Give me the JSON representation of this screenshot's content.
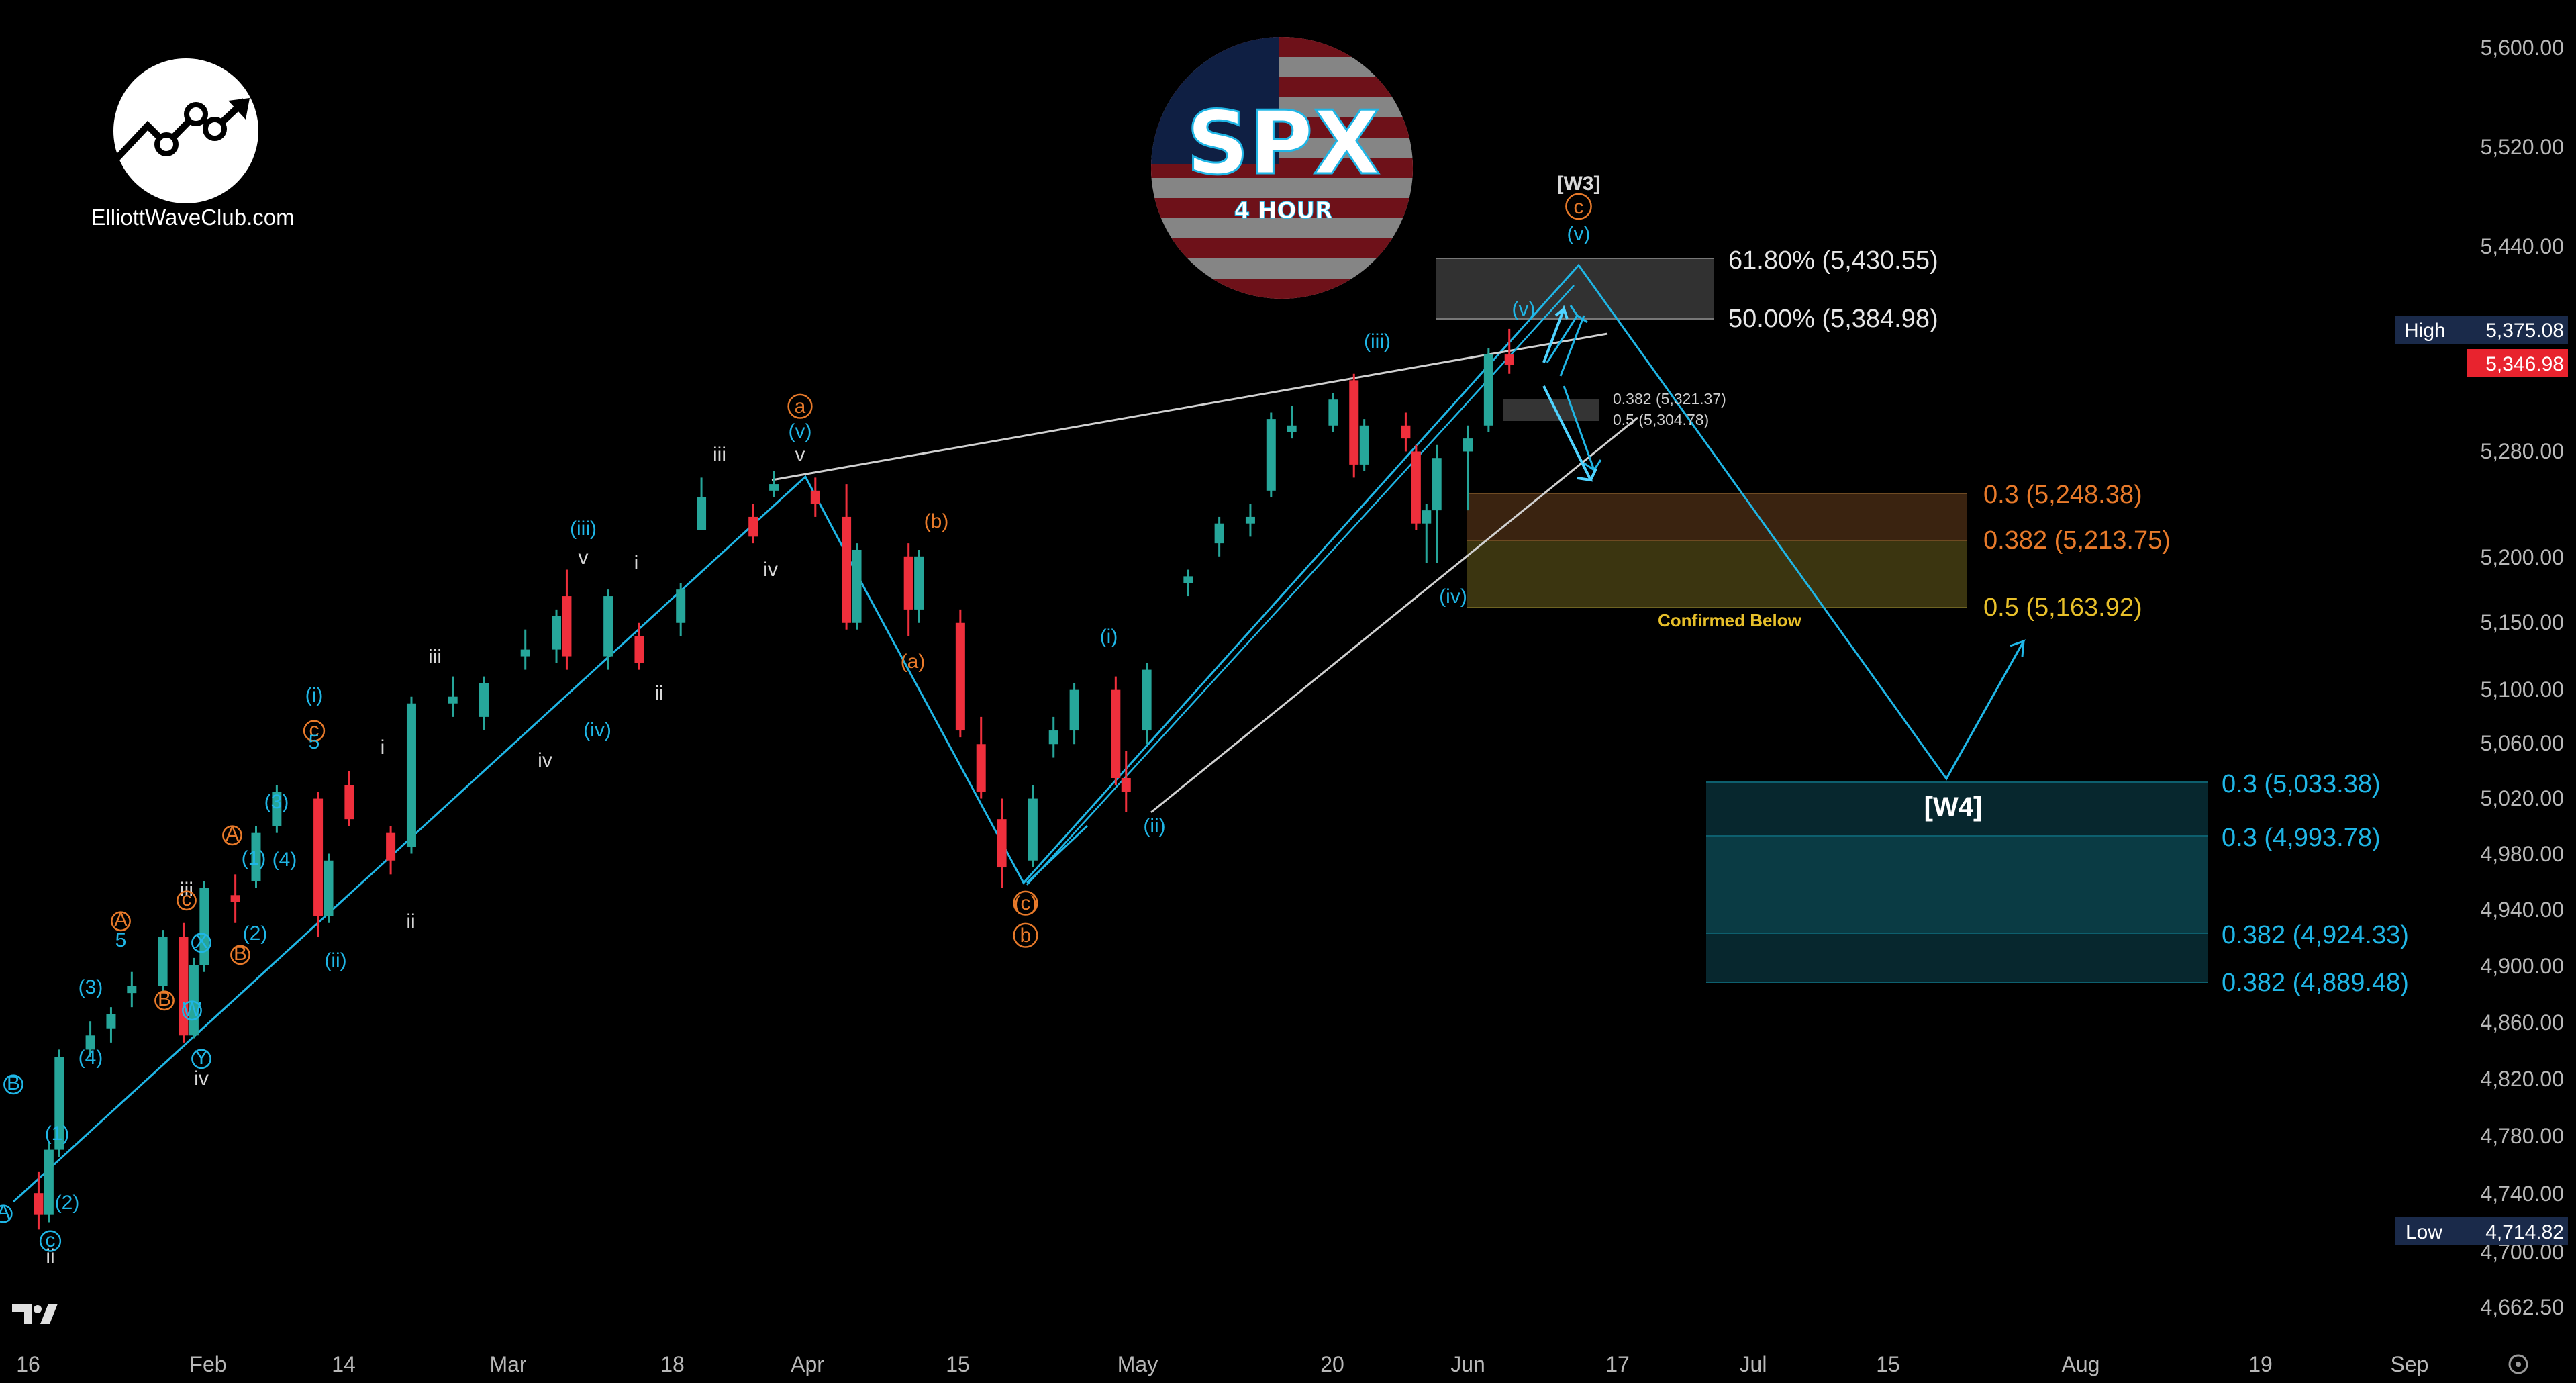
{
  "brand": {
    "name": "ElliottWaveClub.com"
  },
  "badge": {
    "ticker": "SPX",
    "timeframe": "4 HOUR"
  },
  "tv_logo": "tradingview-logo",
  "colors": {
    "bg": "#000000",
    "up": "#26a69a",
    "down": "#ef2f3c",
    "cyan": "#1fb6e6",
    "orange": "#e87a2a",
    "white": "#d8d8d8",
    "grey_box": "#3a3a3a",
    "orange_box": "#3a2310",
    "yellow_box": "#3b3510",
    "teal_box": "#0a3b44",
    "teal_box_dark": "#07272e",
    "teal_mid": "#0d5f6e"
  },
  "axis": {
    "y_ticks": [
      "5,600.00",
      "5,520.00",
      "5,440.00",
      "5,280.00",
      "5,200.00",
      "5,150.00",
      "5,100.00",
      "5,060.00",
      "5,020.00",
      "4,980.00",
      "4,940.00",
      "4,900.00",
      "4,860.00",
      "4,820.00",
      "4,780.00",
      "4,740.00",
      "4,700.00",
      "4,662.50"
    ],
    "x_ticks": [
      "16",
      "Feb",
      "14",
      "Mar",
      "18",
      "Apr",
      "15",
      "May",
      "20",
      "Jun",
      "17",
      "Jul",
      "15",
      "Aug",
      "19",
      "Sep"
    ],
    "high": {
      "label": "High",
      "value": "5,375.08"
    },
    "last": {
      "value": "5,346.98"
    },
    "low": {
      "label": "Low",
      "value": "4,714.82"
    }
  },
  "levels": {
    "fib_618": "61.80% (5,430.55)",
    "fib_50": "50.00% (5,384.98)",
    "small_382": "0.382 (5,321.37)",
    "small_05": "0.5 (5,304.78)",
    "o_03": "0.3 (5,248.38)",
    "o_0382": "0.382 (5,213.75)",
    "y_05": "0.5 (5,163.92)",
    "confirmed": "Confirmed Below",
    "w4_label": "[W4]",
    "t_03a": "0.3 (5,033.38)",
    "t_03b": "0.3 (4,993.78)",
    "t_0382a": "0.382 (4,924.33)",
    "t_0382b": "0.382 (4,889.48)"
  },
  "wave_labels": [
    {
      "t": "[W3]",
      "c": "white"
    },
    {
      "t": "c",
      "c": "orange"
    },
    {
      "t": "(v)",
      "c": "cyan"
    },
    {
      "t": "(v)",
      "c": "cyan"
    },
    {
      "t": "(iii)",
      "c": "cyan"
    },
    {
      "t": "(iv)",
      "c": "cyan"
    },
    {
      "t": "a",
      "c": "orange"
    },
    {
      "t": "(v)",
      "c": "cyan"
    },
    {
      "t": "v",
      "c": "white"
    },
    {
      "t": "iii",
      "c": "white"
    },
    {
      "t": "iv",
      "c": "white"
    },
    {
      "t": "(b)",
      "c": "orange"
    },
    {
      "t": "(a)",
      "c": "orange"
    },
    {
      "t": "(c)",
      "c": "orange"
    },
    {
      "t": "b",
      "c": "orange"
    },
    {
      "t": "(i)",
      "c": "cyan"
    },
    {
      "t": "(ii)",
      "c": "cyan"
    },
    {
      "t": "(iii)",
      "c": "cyan"
    },
    {
      "t": "v",
      "c": "white"
    },
    {
      "t": "i",
      "c": "white"
    },
    {
      "t": "ii",
      "c": "white"
    },
    {
      "t": "(iv)",
      "c": "cyan"
    },
    {
      "t": "iii",
      "c": "white"
    },
    {
      "t": "iv",
      "c": "white"
    },
    {
      "t": "i",
      "c": "white"
    },
    {
      "t": "ii",
      "c": "white"
    },
    {
      "t": "(ii)",
      "c": "cyan"
    },
    {
      "t": "(i)",
      "c": "cyan"
    },
    {
      "t": "c",
      "c": "orange"
    },
    {
      "t": "5",
      "c": "cyan"
    },
    {
      "t": "(3)",
      "c": "cyan"
    },
    {
      "t": "A",
      "c": "orange"
    },
    {
      "t": "(1)",
      "c": "cyan"
    },
    {
      "t": "(4)",
      "c": "cyan"
    },
    {
      "t": "(2)",
      "c": "cyan"
    },
    {
      "t": "iii",
      "c": "white"
    },
    {
      "t": "c",
      "c": "orange"
    },
    {
      "t": "X",
      "c": "cyan"
    },
    {
      "t": "B",
      "c": "orange"
    },
    {
      "t": "B",
      "c": "orange"
    },
    {
      "t": "W",
      "c": "cyan"
    },
    {
      "t": "Y",
      "c": "cyan"
    },
    {
      "t": "iv",
      "c": "white"
    },
    {
      "t": "A",
      "c": "orange"
    },
    {
      "t": "5",
      "c": "cyan"
    },
    {
      "t": "(3)",
      "c": "cyan"
    },
    {
      "t": "(4)",
      "c": "cyan"
    },
    {
      "t": "(1)",
      "c": "cyan"
    },
    {
      "t": "(2)",
      "c": "cyan"
    },
    {
      "t": "c",
      "c": "cyan"
    },
    {
      "t": "ii",
      "c": "white"
    },
    {
      "t": "B",
      "c": "cyan"
    },
    {
      "t": "A",
      "c": "cyan"
    }
  ],
  "chart_data": {
    "type": "candlestick",
    "title": "SPX",
    "subtitle": "4 HOUR",
    "ylim": [
      4640,
      5640
    ],
    "y_scale": "log",
    "x_range": [
      "2024-01-12",
      "2024-09-08"
    ],
    "x_ticks": [
      "16",
      "Feb",
      "14",
      "Mar",
      "18",
      "Apr",
      "15",
      "May",
      "20",
      "Jun",
      "17",
      "Jul",
      "15",
      "Aug",
      "19",
      "Sep"
    ],
    "candles_sampled": [
      [
        "2024-01-12",
        4770,
        4790,
        4755,
        4785
      ],
      [
        "2024-01-17",
        4740,
        4755,
        4715,
        4725
      ],
      [
        "2024-01-18",
        4725,
        4775,
        4720,
        4770
      ],
      [
        "2024-01-19",
        4770,
        4840,
        4765,
        4835
      ],
      [
        "2024-01-22",
        4840,
        4860,
        4835,
        4850
      ],
      [
        "2024-01-24",
        4855,
        4870,
        4845,
        4865
      ],
      [
        "2024-01-26",
        4880,
        4895,
        4870,
        4885
      ],
      [
        "2024-01-29",
        4885,
        4925,
        4880,
        4920
      ],
      [
        "2024-01-31",
        4920,
        4930,
        4845,
        4850
      ],
      [
        "2024-02-01",
        4850,
        4905,
        4848,
        4900
      ],
      [
        "2024-02-02",
        4900,
        4960,
        4895,
        4955
      ],
      [
        "2024-02-05",
        4950,
        4965,
        4930,
        4945
      ],
      [
        "2024-02-07",
        4960,
        5000,
        4955,
        4995
      ],
      [
        "2024-02-09",
        5000,
        5030,
        4995,
        5025
      ],
      [
        "2024-02-13",
        5020,
        5025,
        4920,
        4935
      ],
      [
        "2024-02-14",
        4935,
        4980,
        4930,
        4975
      ],
      [
        "2024-02-16",
        5030,
        5040,
        5000,
        5005
      ],
      [
        "2024-02-20",
        4995,
        5000,
        4965,
        4975
      ],
      [
        "2024-02-22",
        4985,
        5095,
        4980,
        5090
      ],
      [
        "2024-02-26",
        5090,
        5110,
        5080,
        5095
      ],
      [
        "2024-02-29",
        5080,
        5110,
        5070,
        5105
      ],
      [
        "2024-03-04",
        5125,
        5145,
        5115,
        5130
      ],
      [
        "2024-03-07",
        5130,
        5160,
        5120,
        5155
      ],
      [
        "2024-03-08",
        5170,
        5190,
        5115,
        5125
      ],
      [
        "2024-03-12",
        5125,
        5175,
        5115,
        5170
      ],
      [
        "2024-03-15",
        5140,
        5150,
        5115,
        5120
      ],
      [
        "2024-03-19",
        5150,
        5180,
        5140,
        5175
      ],
      [
        "2024-03-21",
        5220,
        5260,
        5220,
        5245
      ],
      [
        "2024-03-26",
        5230,
        5240,
        5210,
        5215
      ],
      [
        "2024-03-28",
        5250,
        5265,
        5245,
        5255
      ],
      [
        "2024-04-01",
        5250,
        5260,
        5230,
        5240
      ],
      [
        "2024-04-04",
        5230,
        5255,
        5145,
        5150
      ],
      [
        "2024-04-05",
        5150,
        5210,
        5145,
        5205
      ],
      [
        "2024-04-10",
        5200,
        5210,
        5140,
        5160
      ],
      [
        "2024-04-11",
        5160,
        5205,
        5150,
        5200
      ],
      [
        "2024-04-15",
        5150,
        5160,
        5065,
        5070
      ],
      [
        "2024-04-17",
        5060,
        5080,
        5020,
        5025
      ],
      [
        "2024-04-19",
        5005,
        5020,
        4955,
        4970
      ],
      [
        "2024-04-22",
        4975,
        5030,
        4970,
        5020
      ],
      [
        "2024-04-24",
        5060,
        5080,
        5050,
        5070
      ],
      [
        "2024-04-26",
        5070,
        5105,
        5060,
        5100
      ],
      [
        "2024-04-30",
        5100,
        5110,
        5030,
        5035
      ],
      [
        "2024-05-01",
        5035,
        5055,
        5010,
        5025
      ],
      [
        "2024-05-03",
        5070,
        5120,
        5060,
        5115
      ],
      [
        "2024-05-07",
        5180,
        5190,
        5170,
        5185
      ],
      [
        "2024-05-10",
        5210,
        5230,
        5200,
        5225
      ],
      [
        "2024-05-13",
        5225,
        5240,
        5215,
        5230
      ],
      [
        "2024-05-15",
        5250,
        5310,
        5245,
        5305
      ],
      [
        "2024-05-17",
        5295,
        5315,
        5290,
        5300
      ],
      [
        "2024-05-21",
        5300,
        5325,
        5295,
        5320
      ],
      [
        "2024-05-23",
        5335,
        5340,
        5260,
        5270
      ],
      [
        "2024-05-24",
        5270,
        5305,
        5265,
        5300
      ],
      [
        "2024-05-28",
        5300,
        5310,
        5280,
        5290
      ],
      [
        "2024-05-29",
        5280,
        5285,
        5220,
        5225
      ],
      [
        "2024-05-30",
        5225,
        5240,
        5195,
        5235
      ],
      [
        "2024-05-31",
        5235,
        5285,
        5195,
        5275
      ],
      [
        "2024-06-03",
        5280,
        5300,
        5235,
        5290
      ],
      [
        "2024-06-05",
        5300,
        5360,
        5295,
        5355
      ],
      [
        "2024-06-07",
        5355,
        5375,
        5340,
        5347
      ]
    ],
    "fib_levels": [
      {
        "level": "61.80%",
        "value": 5430.55
      },
      {
        "level": "50.00%",
        "value": 5384.98
      },
      {
        "level": "0.382",
        "value": 5321.37
      },
      {
        "level": "0.5",
        "value": 5304.78
      },
      {
        "level": "0.3",
        "value": 5248.38
      },
      {
        "level": "0.382",
        "value": 5213.75
      },
      {
        "level": "0.5",
        "value": 5163.92
      },
      {
        "level": "0.3",
        "value": 5033.38
      },
      {
        "level": "0.3",
        "value": 4993.78
      },
      {
        "level": "0.382",
        "value": 4924.33
      },
      {
        "level": "0.382",
        "value": 4889.48
      }
    ],
    "high": 5375.08,
    "low": 4714.82,
    "last": 5346.98
  }
}
